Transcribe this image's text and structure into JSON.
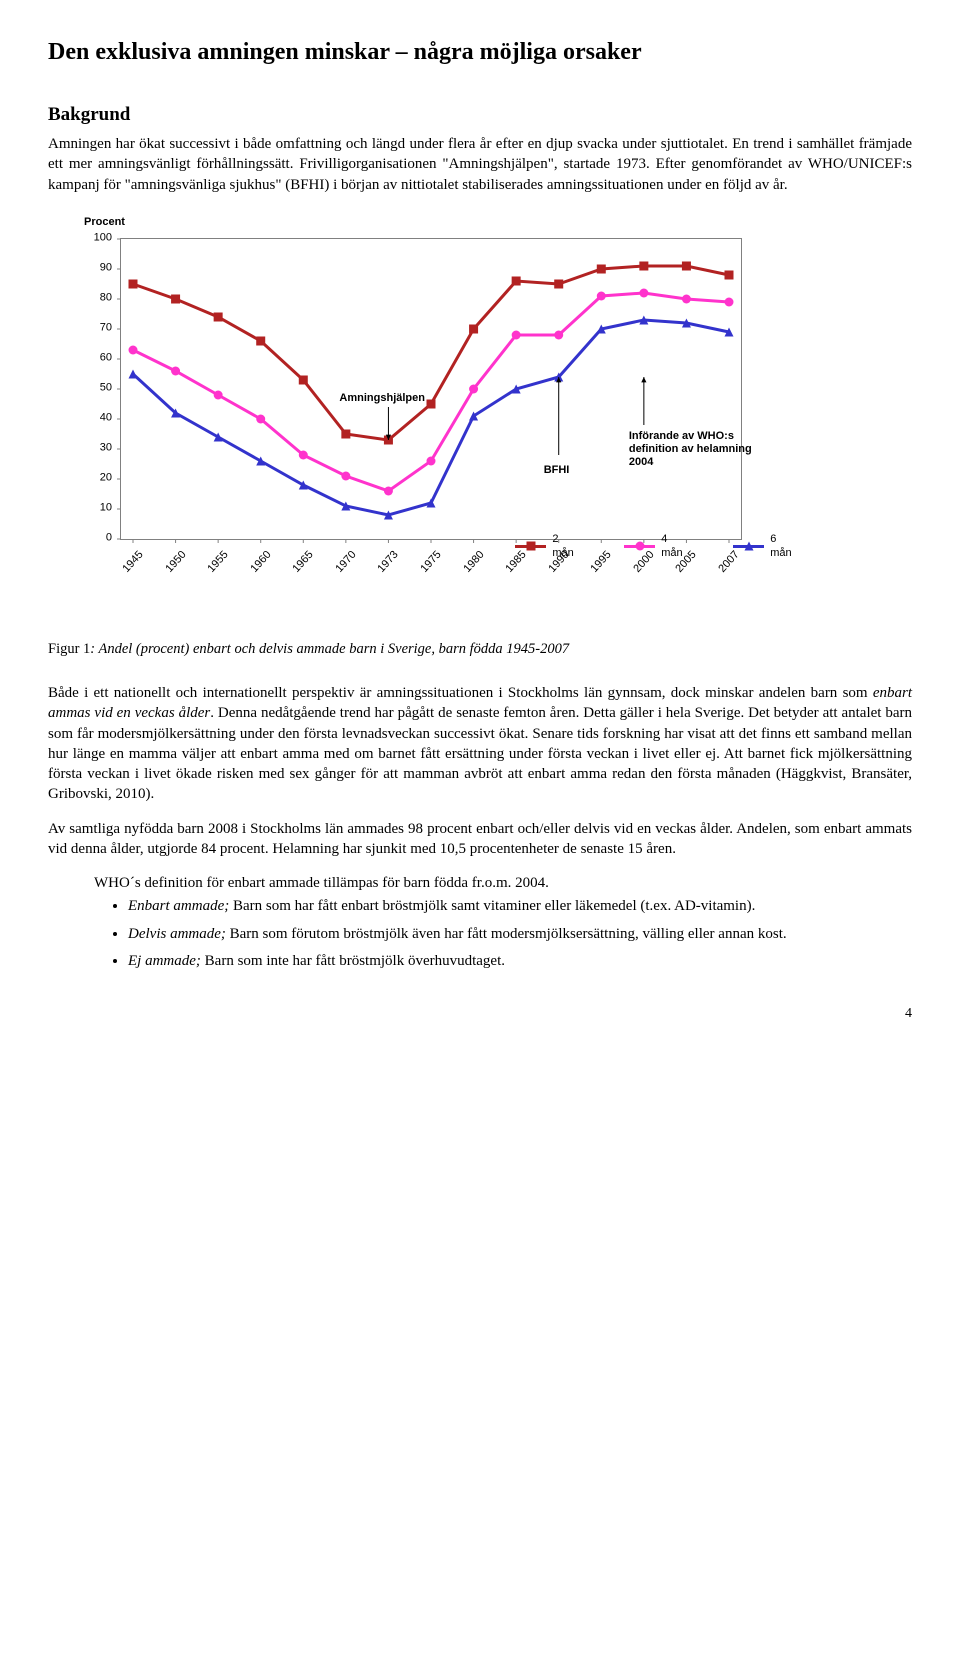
{
  "title": "Den exklusiva amningen minskar – några möjliga orsaker",
  "section_heading": "Bakgrund",
  "para1": "Amningen har ökat successivt i både omfattning och längd under flera år efter en djup svacka under sjuttiotalet. En trend i samhället främjade ett mer amningsvänligt förhållningssätt. Frivilligorganisationen \"Amningshjälpen\", startade 1973. Efter genomförandet av WHO/UNICEF:s kampanj för \"amningsvänliga sjukhus\" (BFHI) i början av nittiotalet stabiliserades amningssituationen under en följd av år.",
  "chart": {
    "y_axis_title": "Procent",
    "x_categories": [
      "1945",
      "1950",
      "1955",
      "1960",
      "1965",
      "1970",
      "1973",
      "1975",
      "1980",
      "1985",
      "1990",
      "1995",
      "2000",
      "2005",
      "2007"
    ],
    "series": [
      {
        "name": "2 mån",
        "color": "#b22222",
        "marker": "square",
        "values": [
          85,
          80,
          74,
          66,
          53,
          35,
          33,
          45,
          70,
          86,
          85,
          90,
          91,
          91,
          88
        ]
      },
      {
        "name": "4 mån",
        "color": "#ff33cc",
        "marker": "circle",
        "values": [
          63,
          56,
          48,
          40,
          28,
          21,
          16,
          26,
          50,
          68,
          68,
          81,
          82,
          80,
          79
        ]
      },
      {
        "name": "6 mån",
        "color": "#3333cc",
        "marker": "triangle",
        "values": [
          55,
          42,
          34,
          26,
          18,
          11,
          8,
          12,
          41,
          50,
          54,
          70,
          73,
          72,
          69
        ]
      }
    ],
    "ylim": [
      0,
      100
    ],
    "ytick_step": 10,
    "line_width": 3,
    "marker_size": 9,
    "plot_border": "#808080",
    "background": "#ffffff",
    "annotations": {
      "amn": {
        "text": "Amningshjälpen",
        "line_from_idx": 6,
        "line_to_y": 33
      },
      "bfhi": {
        "text": "BFHI",
        "line_from_idx": 10,
        "line_to_y": 54
      },
      "who": {
        "text_lines": [
          "Införande av WHO:s",
          "definition av helamning",
          "2004"
        ],
        "line_from_idx": 12,
        "line_to_y": 54
      }
    },
    "legend_pos": "below-right"
  },
  "caption_prefix": "Figur 1",
  "caption_rest": ": Andel (procent) enbart och delvis ammade barn i Sverige, barn födda 1945-2007",
  "para2_pre": "Både i ett nationellt och internationellt perspektiv är amningssituationen i Stockholms län gynnsam, dock minskar andelen barn som ",
  "para2_it": "enbart ammas vid en veckas ålder",
  "para2_post": ". Denna nedåtgående trend har pågått de senaste femton åren. Detta gäller i hela Sverige. Det betyder att antalet barn som får modersmjölkersättning under den första levnadsveckan successivt ökat. Senare tids forskning har visat att det finns ett samband mellan hur länge en mamma väljer att enbart amma med om barnet fått ersättning under första veckan i livet eller ej. Att barnet fick mjölkersättning första veckan i livet ökade risken med sex gånger för att mamman avbröt att enbart amma redan den första månaden (Häggkvist, Bransäter, Gribovski, 2010).",
  "para3": "Av samtliga nyfödda barn 2008 i Stockholms län ammades 98 procent enbart och/eller delvis vid en veckas ålder. Andelen, som enbart ammats vid denna ålder, utgjorde 84 procent. Helamning har sjunkit med 10,5 procentenheter de senaste 15 åren.",
  "defs_intro": "WHO´s definition för enbart ammade tillämpas för barn födda fr.o.m. 2004.",
  "bullets": [
    {
      "lead": "Enbart ammade;",
      "rest": " Barn som har fått enbart bröstmjölk samt vitaminer eller läkemedel (t.ex. AD-vitamin)."
    },
    {
      "lead": "Delvis ammade;",
      "rest": " Barn som förutom bröstmjölk även har fått modersmjölksersättning, välling eller annan kost."
    },
    {
      "lead": "Ej ammade;",
      "rest": " Barn som inte har fått bröstmjölk överhuvudtaget."
    }
  ],
  "page_number": "4"
}
